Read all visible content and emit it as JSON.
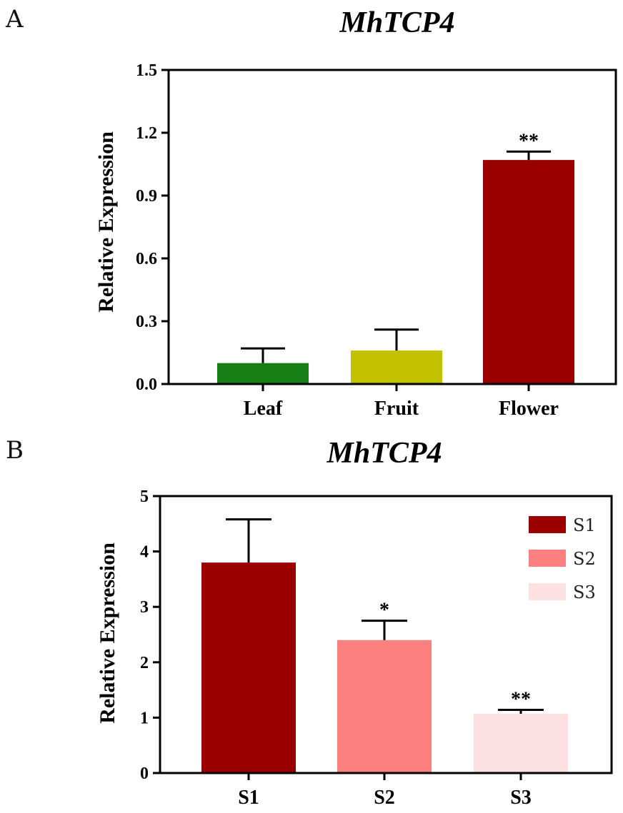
{
  "chart_data": [
    {
      "panel": "A",
      "type": "bar",
      "title": "MhTCP4",
      "ylabel": "Relative Expression",
      "xlabel": "",
      "ylim": [
        0,
        1.5
      ],
      "yticks": [
        "0.0",
        "0.3",
        "0.6",
        "0.9",
        "1.2",
        "1.5"
      ],
      "categories": [
        "Leaf",
        "Fruit",
        "Flower"
      ],
      "values": [
        0.1,
        0.16,
        1.07
      ],
      "errors": [
        0.07,
        0.1,
        0.04
      ],
      "significance": [
        "",
        "",
        "**"
      ],
      "colors": [
        "#168016",
        "#c2c200",
        "#9b0000"
      ]
    },
    {
      "panel": "B",
      "type": "bar",
      "title": "MhTCP4",
      "ylabel": "Relative Expression",
      "xlabel": "",
      "ylim": [
        0,
        5
      ],
      "yticks": [
        "0",
        "1",
        "2",
        "3",
        "4",
        "5"
      ],
      "categories": [
        "S1",
        "S2",
        "S3"
      ],
      "values": [
        3.8,
        2.4,
        1.07
      ],
      "errors": [
        0.78,
        0.35,
        0.07
      ],
      "significance": [
        "",
        "*",
        "**"
      ],
      "colors": [
        "#9b0000",
        "#fd8080",
        "#fde0e0"
      ],
      "legend": [
        "S1",
        "S2",
        "S3"
      ]
    }
  ]
}
